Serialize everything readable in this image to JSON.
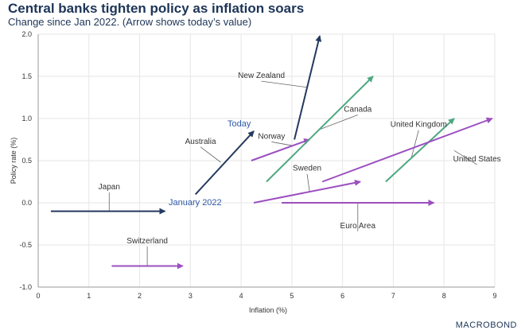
{
  "header": {
    "title": "Central banks tighten policy as inflation soars",
    "subtitle": "Change since Jan 2022. (Arrow shows today’s value)"
  },
  "brand": "MACROBOND",
  "chart_data": {
    "type": "scatter",
    "xlabel": "Inflation (%)",
    "ylabel": "Policy rate (%)",
    "xlim": [
      0,
      9
    ],
    "ylim": [
      -1.0,
      2.0
    ],
    "xticks": [
      "0",
      "1",
      "2",
      "3",
      "4",
      "5",
      "6",
      "7",
      "8",
      "9"
    ],
    "yticks": [
      "-1.0",
      "-0.5",
      "0.0",
      "0.5",
      "1.0",
      "1.5",
      "2.0"
    ],
    "grid": true,
    "annotations": {
      "start": "January 2022",
      "end": "Today"
    },
    "colors": {
      "navy": "#24395e",
      "green": "#4da882",
      "purple": "#9b4fbf",
      "annotation": "#2f5aa8"
    },
    "series": [
      {
        "name": "Japan",
        "color": "navy",
        "x0": 0.25,
        "y0": -0.1,
        "x1": 2.5,
        "y1": -0.1,
        "label_at": [
          1.4,
          0.16
        ],
        "leader_to": [
          1.4,
          -0.1
        ]
      },
      {
        "name": "Australia",
        "color": "navy",
        "x0": 3.1,
        "y0": 0.1,
        "x1": 4.25,
        "y1": 0.85,
        "label_at": [
          3.2,
          0.7
        ],
        "leader_to": [
          3.6,
          0.48
        ]
      },
      {
        "name": "New Zealand",
        "color": "navy",
        "x0": 5.05,
        "y0": 0.75,
        "x1": 5.55,
        "y1": 1.98,
        "label_at": [
          4.4,
          1.48
        ],
        "leader_to": [
          5.3,
          1.37
        ]
      },
      {
        "name": "Norway",
        "color": "purple",
        "x0": 4.2,
        "y0": 0.5,
        "x1": 5.35,
        "y1": 0.75,
        "label_at": [
          4.6,
          0.76
        ],
        "leader_to": [
          5.0,
          0.68
        ]
      },
      {
        "name": "Canada",
        "color": "green",
        "x0": 4.5,
        "y0": 0.25,
        "x1": 6.6,
        "y1": 1.5,
        "label_at": [
          6.3,
          1.08
        ],
        "leader_to": [
          5.55,
          0.87
        ]
      },
      {
        "name": "Sweden",
        "color": "purple",
        "x0": 4.25,
        "y0": 0.0,
        "x1": 6.35,
        "y1": 0.25,
        "label_at": [
          5.3,
          0.38
        ],
        "leader_to": [
          5.35,
          0.13
        ]
      },
      {
        "name": "United Kingdom",
        "color": "green",
        "x0": 6.85,
        "y0": 0.25,
        "x1": 8.2,
        "y1": 1.0,
        "label_at": [
          7.5,
          0.9
        ],
        "leader_to": [
          7.35,
          0.52
        ]
      },
      {
        "name": "United States",
        "color": "purple",
        "x0": 5.6,
        "y0": 0.25,
        "x1": 8.95,
        "y1": 1.0,
        "label_at": [
          8.65,
          0.49
        ],
        "leader_to": [
          8.2,
          0.62
        ]
      },
      {
        "name": "Euro Area",
        "color": "purple",
        "x0": 4.8,
        "y0": 0.0,
        "x1": 7.8,
        "y1": 0.0,
        "label_at": [
          6.3,
          -0.3
        ],
        "leader_to": [
          6.3,
          0.0
        ]
      },
      {
        "name": "Switzerland",
        "color": "purple",
        "x0": 1.45,
        "y0": -0.75,
        "x1": 2.85,
        "y1": -0.75,
        "label_at": [
          2.15,
          -0.48
        ],
        "leader_to": [
          2.15,
          -0.75
        ]
      }
    ]
  }
}
